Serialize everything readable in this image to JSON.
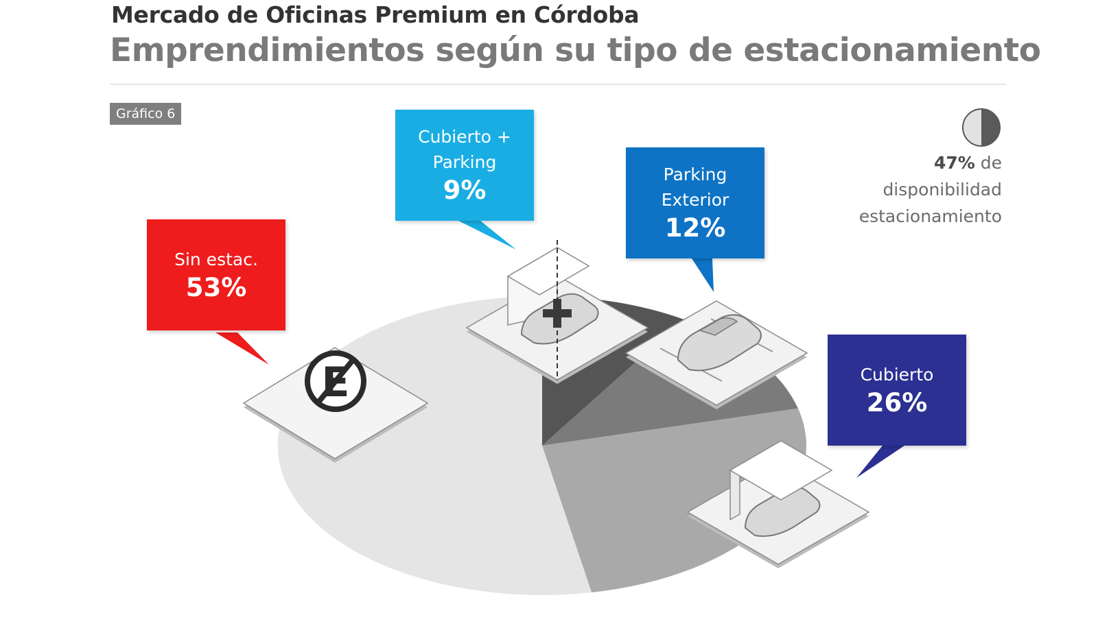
{
  "header": {
    "title": "Mercado de Oficinas Premium en Córdoba",
    "subtitle": "Emprendimientos según su tipo de estacionamiento",
    "tag": "Gráfico 6"
  },
  "legend": {
    "value": "47%",
    "text_1": "de",
    "text_2": "disponibilidad",
    "text_3": "estacionamiento"
  },
  "colors": {
    "sin_estac": "#ee1c1c",
    "cubierto_parking": "#19ade3",
    "parking_exterior": "#0e73c4",
    "cubierto": "#2b3092"
  },
  "chart_data": {
    "type": "pie",
    "categories": [
      "Sin estac.",
      "Cubierto + Parking",
      "Parking Exterior",
      "Cubierto"
    ],
    "values": [
      53,
      9,
      12,
      26
    ],
    "value_labels": [
      "53%",
      "9%",
      "12%",
      "26%"
    ],
    "box_labels": [
      "Sin estac.",
      "Cubierto +\nParking",
      "Parking\nExterior",
      "Cubierto"
    ],
    "slice_colors": [
      "#e5e5e5",
      "#555555",
      "#7b7b7b",
      "#a9a9a9"
    ],
    "icons": [
      "no-parking-icon",
      "covered-parking-icon",
      "outdoor-parking-icon",
      "carport-icon"
    ]
  }
}
